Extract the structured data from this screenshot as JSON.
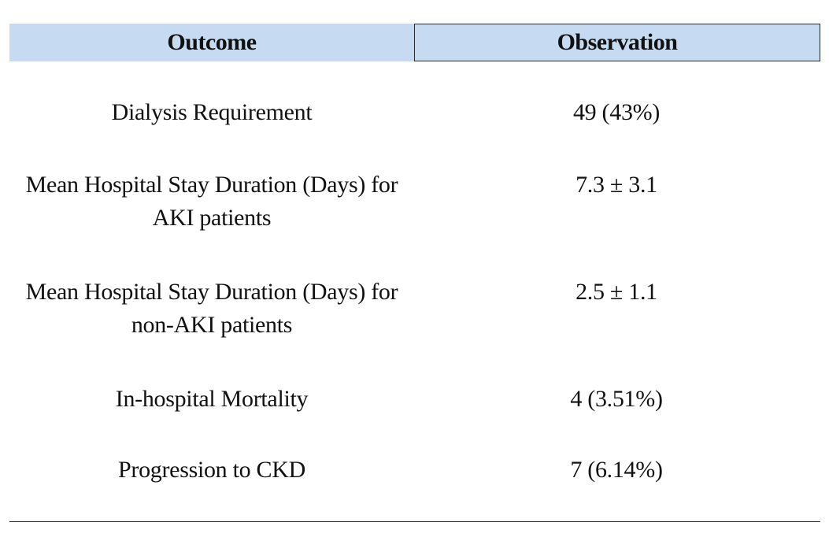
{
  "table": {
    "headers": {
      "outcome": "Outcome",
      "observation": "Observation"
    },
    "rows": [
      {
        "outcome": "Dialysis Requirement",
        "observation": "49 (43%)"
      },
      {
        "outcome": "Mean Hospital Stay Duration (Days) for AKI patients",
        "observation": "7.3 ± 3.1"
      },
      {
        "outcome": "Mean Hospital Stay Duration (Days) for non-AKI patients",
        "observation": "2.5 ± 1.1"
      },
      {
        "outcome": "In-hospital Mortality",
        "observation": "4 (3.51%)"
      },
      {
        "outcome": "Progression to CKD",
        "observation": "7 (6.14%)"
      }
    ]
  },
  "colors": {
    "header_background": "#c6dbf1",
    "rule": "#2a2a2a",
    "text": "#111111"
  }
}
